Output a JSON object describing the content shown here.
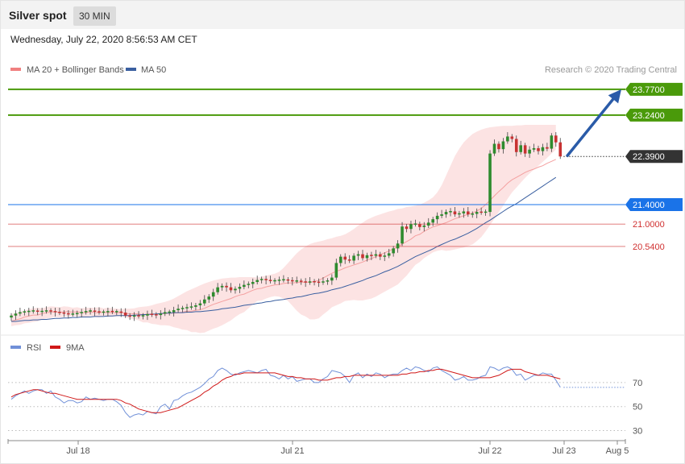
{
  "header": {
    "title": "Silver spot",
    "timeframe": "30 MIN"
  },
  "datetime": "Wednesday, July 22, 2020 8:56:53 AM CET",
  "credit": "Research © 2020 Trading Central",
  "colors": {
    "ma20": "#f08080",
    "ma50": "#3a5fa0",
    "bullish": "#2e8b2e",
    "bearish": "#c83232",
    "green_level": "#4a9a0a",
    "blue_level": "#1a73e8",
    "red_level": "#d03030",
    "rsi": "#7090d8",
    "rsi_ma": "#d01818"
  },
  "chart_data": [
    {
      "type": "candlestick",
      "title": "Silver spot",
      "legend": [
        {
          "name": "MA 20 + Bollinger Bands",
          "color": "#f08080"
        },
        {
          "name": "MA 50",
          "color": "#3a5fa0"
        }
      ],
      "legend_position": "top-left",
      "x_ticks": [
        "Jul 18",
        "Jul 21",
        "Jul 22",
        "Jul 23",
        "Aug 5"
      ],
      "ylim": [
        18.9,
        23.95
      ],
      "last_price": 22.39,
      "levels": [
        {
          "value": 23.77,
          "label": "23.7700",
          "kind": "resistance"
        },
        {
          "value": 23.24,
          "label": "23.2400",
          "kind": "resistance"
        },
        {
          "value": 22.39,
          "label": "22.3900",
          "kind": "last"
        },
        {
          "value": 21.4,
          "label": "21.4000",
          "kind": "pivot"
        },
        {
          "value": 21.0,
          "label": "21.0000",
          "kind": "support"
        },
        {
          "value": 20.54,
          "label": "20.5400",
          "kind": "support"
        }
      ],
      "target_arrow": {
        "from": 22.39,
        "to": 23.77
      },
      "closes": [
        19.12,
        19.16,
        19.19,
        19.2,
        19.21,
        19.22,
        19.2,
        19.21,
        19.22,
        19.21,
        19.19,
        19.18,
        19.16,
        19.15,
        19.15,
        19.17,
        19.19,
        19.21,
        19.22,
        19.2,
        19.19,
        19.19,
        19.21,
        19.2,
        19.2,
        19.18,
        19.12,
        19.1,
        19.12,
        19.11,
        19.12,
        19.15,
        19.14,
        19.13,
        19.16,
        19.19,
        19.19,
        19.23,
        19.26,
        19.27,
        19.29,
        19.3,
        19.33,
        19.37,
        19.45,
        19.51,
        19.6,
        19.7,
        19.73,
        19.7,
        19.64,
        19.67,
        19.71,
        19.75,
        19.77,
        19.81,
        19.85,
        19.87,
        19.85,
        19.83,
        19.84,
        19.85,
        19.86,
        19.84,
        19.83,
        19.83,
        19.82,
        19.8,
        19.82,
        19.81,
        19.8,
        19.82,
        19.84,
        19.9,
        20.2,
        20.33,
        20.27,
        20.25,
        20.35,
        20.38,
        20.3,
        20.36,
        20.35,
        20.38,
        20.33,
        20.35,
        20.4,
        20.5,
        20.6,
        20.95,
        20.9,
        21.0,
        21.0,
        20.94,
        20.97,
        21.03,
        21.1,
        21.17,
        21.2,
        21.25,
        21.26,
        21.2,
        21.22,
        21.26,
        21.2,
        21.21,
        21.25,
        21.24,
        21.25,
        22.45,
        22.65,
        22.54,
        22.7,
        22.8,
        22.75,
        22.48,
        22.62,
        22.45,
        22.53,
        22.56,
        22.5,
        22.58,
        22.55,
        22.82,
        22.68,
        22.39
      ],
      "ma20": [
        19.0,
        19.03,
        19.05,
        19.09,
        19.11,
        19.13,
        19.13,
        19.16,
        19.18,
        19.19,
        19.2,
        19.18,
        19.2,
        19.2,
        19.19,
        19.2,
        19.18,
        19.18,
        19.2,
        19.18,
        19.18,
        19.19,
        19.18,
        19.18,
        19.18,
        19.18,
        19.17,
        19.15,
        19.16,
        19.15,
        19.14,
        19.15,
        19.14,
        19.15,
        19.15,
        19.16,
        19.17,
        19.17,
        19.18,
        19.19,
        19.21,
        19.21,
        19.23,
        19.24,
        19.27,
        19.31,
        19.35,
        19.38,
        19.41,
        19.44,
        19.47,
        19.51,
        19.54,
        19.56,
        19.6,
        19.64,
        19.67,
        19.68,
        19.71,
        19.73,
        19.75,
        19.76,
        19.78,
        19.79,
        19.79,
        19.8,
        19.8,
        19.81,
        19.8,
        19.82,
        19.84,
        19.89,
        19.94,
        19.99,
        20.03,
        20.06,
        20.1,
        20.13,
        20.16,
        20.19,
        20.22,
        20.26,
        20.29,
        20.33,
        20.37,
        20.41,
        20.45,
        20.49,
        20.53,
        20.59,
        20.64,
        20.69,
        20.76,
        20.79,
        20.85,
        20.9,
        20.94,
        20.97,
        21.0,
        21.03,
        21.07,
        21.11,
        21.14,
        21.17,
        21.2,
        21.23,
        21.27,
        21.32,
        21.4,
        21.49,
        21.58,
        21.67,
        21.75,
        21.84,
        21.91,
        21.96,
        22.01,
        22.06,
        22.1,
        22.13,
        22.17,
        22.2,
        22.25,
        22.29,
        22.33
      ],
      "ma50": [
        19.0,
        19.0,
        19.01,
        19.02,
        19.02,
        19.03,
        19.03,
        19.04,
        19.04,
        19.05,
        19.06,
        19.06,
        19.07,
        19.07,
        19.08,
        19.08,
        19.09,
        19.09,
        19.09,
        19.1,
        19.1,
        19.1,
        19.11,
        19.11,
        19.12,
        19.12,
        19.12,
        19.12,
        19.13,
        19.13,
        19.14,
        19.14,
        19.15,
        19.15,
        19.16,
        19.17,
        19.17,
        19.18,
        19.18,
        19.18,
        19.19,
        19.19,
        19.2,
        19.2,
        19.21,
        19.22,
        19.23,
        19.24,
        19.26,
        19.27,
        19.28,
        19.29,
        19.31,
        19.33,
        19.34,
        19.35,
        19.37,
        19.38,
        19.4,
        19.41,
        19.43,
        19.44,
        19.45,
        19.47,
        19.48,
        19.5,
        19.51,
        19.53,
        19.55,
        19.57,
        19.58,
        19.6,
        19.62,
        19.65,
        19.67,
        19.69,
        19.72,
        19.75,
        19.78,
        19.81,
        19.84,
        19.88,
        19.91,
        19.94,
        19.98,
        20.02,
        20.05,
        20.09,
        20.13,
        20.18,
        20.23,
        20.28,
        20.33,
        20.37,
        20.41,
        20.45,
        20.49,
        20.54,
        20.58,
        20.62,
        20.66,
        20.69,
        20.73,
        20.77,
        20.81,
        20.86,
        20.91,
        20.97,
        21.03,
        21.08,
        21.14,
        21.2,
        21.26,
        21.32,
        21.37,
        21.42,
        21.48,
        21.54,
        21.6,
        21.66,
        21.72,
        21.78,
        21.84,
        21.9,
        21.96
      ],
      "bb_upper": [
        19.15,
        19.17,
        19.2,
        19.22,
        19.25,
        19.27,
        19.28,
        19.27,
        19.29,
        19.31,
        19.3,
        19.29,
        19.31,
        19.3,
        19.28,
        19.29,
        19.27,
        19.28,
        19.28,
        19.28,
        19.29,
        19.27,
        19.28,
        19.27,
        19.26,
        19.25,
        19.26,
        19.26,
        19.27,
        19.29,
        19.3,
        19.31,
        19.33,
        19.36,
        19.38,
        19.4,
        19.43,
        19.47,
        19.52,
        19.57,
        19.62,
        19.66,
        19.7,
        19.74,
        19.78,
        19.81,
        19.84,
        19.86,
        19.88,
        19.89,
        19.9,
        19.9,
        19.91,
        19.91,
        19.91,
        19.91,
        19.9,
        19.92,
        19.94,
        19.96,
        19.98,
        20.02,
        20.1,
        20.2,
        20.3,
        20.4,
        20.48,
        20.54,
        20.59,
        20.62,
        20.64,
        20.66,
        20.69,
        20.71,
        20.74,
        20.76,
        20.79,
        20.84,
        20.9,
        20.97,
        21.03,
        21.09,
        21.13,
        21.17,
        21.2,
        21.23,
        21.26,
        21.28,
        21.31,
        21.32,
        21.35,
        21.36,
        21.38,
        21.4,
        21.44,
        21.49,
        21.55,
        21.65,
        21.8,
        22.0,
        22.2,
        22.4,
        22.55,
        22.68,
        22.77,
        22.85,
        22.9,
        22.94,
        22.97,
        22.99,
        23.0,
        23.01,
        23.02,
        23.02,
        23.02,
        23.03,
        23.03,
        23.04,
        23.04,
        23.04,
        23.04,
        23.04,
        23.04,
        23.04,
        23.04
      ],
      "bb_lower": [
        18.9,
        18.92,
        18.93,
        18.96,
        18.97,
        18.99,
        19.0,
        19.04,
        19.06,
        19.07,
        19.09,
        19.08,
        19.09,
        19.1,
        19.1,
        19.11,
        19.09,
        19.08,
        19.11,
        19.09,
        19.08,
        19.11,
        19.09,
        19.1,
        19.1,
        19.11,
        19.09,
        19.05,
        19.05,
        19.02,
        18.98,
        18.98,
        18.95,
        18.94,
        18.92,
        18.92,
        18.91,
        18.88,
        18.86,
        18.83,
        18.82,
        18.78,
        18.78,
        18.76,
        18.77,
        18.81,
        18.85,
        18.88,
        18.92,
        18.97,
        19.02,
        19.09,
        19.15,
        19.19,
        19.27,
        19.35,
        19.42,
        19.43,
        19.47,
        19.5,
        19.52,
        19.51,
        19.47,
        19.42,
        19.32,
        19.22,
        19.14,
        19.1,
        19.04,
        19.04,
        19.06,
        19.14,
        19.21,
        19.29,
        19.33,
        19.37,
        19.42,
        19.43,
        19.44,
        19.43,
        19.43,
        19.45,
        19.47,
        19.51,
        19.56,
        19.61,
        19.66,
        19.71,
        19.76,
        19.85,
        19.94,
        20.05,
        20.16,
        20.22,
        20.3,
        20.36,
        20.42,
        20.45,
        20.47,
        20.45,
        20.46,
        20.48,
        20.5,
        20.52,
        20.55,
        20.58,
        20.65,
        20.73,
        20.85,
        20.98,
        21.11,
        21.25,
        21.38,
        21.52,
        21.65,
        21.75,
        21.85,
        21.95,
        22.04,
        22.12,
        22.2,
        22.28,
        22.36,
        22.45,
        22.53
      ]
    },
    {
      "type": "line",
      "title": "RSI",
      "legend": [
        {
          "name": "RSI",
          "color": "#7090d8"
        },
        {
          "name": "9MA",
          "color": "#d01818"
        }
      ],
      "y_ticks": [
        70,
        50,
        30
      ],
      "ylim": [
        23,
        90
      ],
      "rsi": [
        56,
        59,
        61,
        63,
        61,
        63,
        64,
        64,
        61,
        63,
        58,
        56,
        53,
        55,
        55,
        53,
        54,
        58,
        56,
        57,
        56,
        55,
        56,
        56,
        54,
        51,
        45,
        41,
        43,
        44,
        43,
        46,
        45,
        44,
        50,
        52,
        48,
        55,
        56,
        59,
        61,
        62,
        64,
        66,
        69,
        73,
        75,
        80,
        82,
        80,
        77,
        76,
        78,
        79,
        80,
        79,
        78,
        80,
        81,
        76,
        75,
        73,
        76,
        73,
        75,
        71,
        72,
        73,
        73,
        70,
        70,
        73,
        75,
        80,
        79,
        78,
        75,
        70,
        76,
        78,
        74,
        77,
        75,
        78,
        77,
        74,
        76,
        77,
        77,
        80,
        82,
        80,
        83,
        82,
        80,
        79,
        82,
        83,
        80,
        78,
        76,
        72,
        73,
        75,
        72,
        72,
        73,
        75,
        76,
        83,
        82,
        80,
        82,
        83,
        81,
        76,
        77,
        72,
        74,
        76,
        76,
        78,
        77,
        77,
        72,
        66
      ],
      "rsi_ma": [
        58,
        60,
        61,
        62,
        63,
        64,
        64,
        63,
        62,
        61,
        61,
        60,
        59,
        58,
        57,
        56,
        56,
        56,
        56,
        56,
        56,
        56,
        56,
        56,
        56,
        55,
        53,
        52,
        50,
        48,
        47,
        46,
        45,
        45,
        45,
        46,
        47,
        48,
        49,
        51,
        53,
        55,
        57,
        59,
        62,
        64,
        67,
        69,
        72,
        74,
        75,
        77,
        77,
        78,
        78,
        78,
        78,
        78,
        78,
        78,
        78,
        77,
        76,
        75,
        75,
        74,
        74,
        73,
        73,
        73,
        72,
        72,
        72,
        73,
        74,
        74,
        75,
        75,
        76,
        76,
        76,
        76,
        76,
        76,
        76,
        76,
        76,
        76,
        76,
        77,
        77,
        78,
        78,
        79,
        79,
        80,
        80,
        81,
        81,
        80,
        79,
        78,
        77,
        76,
        75,
        74,
        74,
        74,
        74,
        74,
        75,
        76,
        78,
        80,
        81,
        81,
        81,
        79,
        78,
        77,
        76,
        76,
        76,
        75,
        74,
        73
      ]
    }
  ]
}
